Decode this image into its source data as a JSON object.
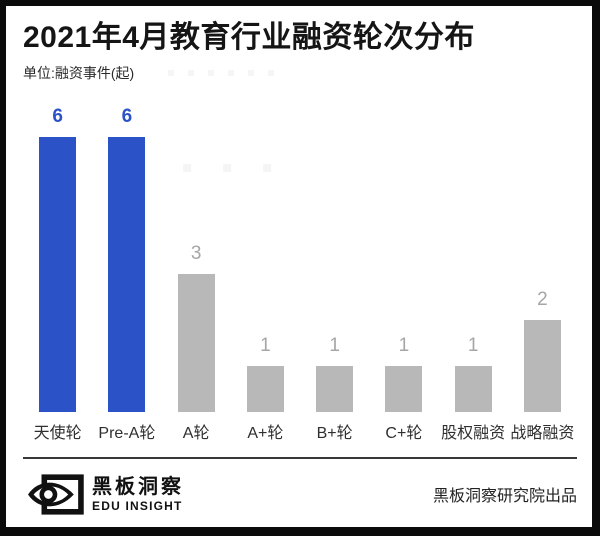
{
  "header": {
    "title": "2021年4月教育行业融资轮次分布",
    "unit_label": "单位:融资事件(起)"
  },
  "chart_data": {
    "type": "bar",
    "title": "2021年4月教育行业融资轮次分布",
    "unit": "融资事件(起)",
    "categories": [
      "天使轮",
      "Pre-A轮",
      "A轮",
      "A+轮",
      "B+轮",
      "C+轮",
      "股权融资",
      "战略融资"
    ],
    "values": [
      6,
      6,
      3,
      1,
      1,
      1,
      1,
      2
    ],
    "ylim": [
      0,
      6
    ],
    "grid": false,
    "legend": false,
    "value_labels_shown": true,
    "accent_bar_indexes": [
      0,
      1
    ],
    "accent_color": "#2b52c6",
    "default_color": "#b8b8b8",
    "accent_value_label_color": "#2b52c6",
    "default_value_label_color": "#a6a6a6"
  },
  "footer": {
    "brand_cn": "黑板洞察",
    "brand_en": "EDU INSIGHT",
    "credit": "黑板洞察研究院出品"
  },
  "colors": {
    "frame": "#0a0a0a",
    "title_text": "#151515",
    "axis_label_text": "#2f2f2f",
    "divider": "#383838"
  }
}
